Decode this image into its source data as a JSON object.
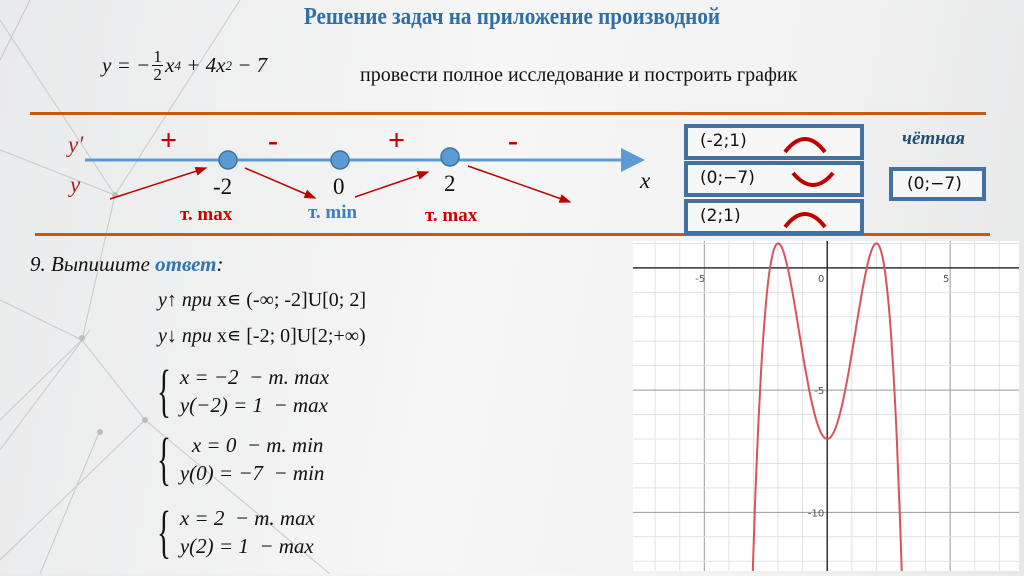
{
  "title": "Решение задач на приложение производной",
  "formula": {
    "lhs": "y = −",
    "num": "1",
    "den": "2",
    "x4": "x",
    "p4": "4",
    "rest": " + 4x",
    "p2": "2",
    "tail": " − 7"
  },
  "task": "провести полное исследование и построить график",
  "number_line": {
    "dy_label": "y′",
    "y_label": "y",
    "x_label": "x",
    "signs": [
      "+",
      "-",
      "+",
      "-"
    ],
    "points": [
      "-2",
      "0",
      "2"
    ],
    "extrema": [
      "т. max",
      "т. min",
      "т. max"
    ],
    "colors": {
      "line": "#5b9bd5",
      "arrows": "#c00000",
      "max": "#d00000",
      "min": "#3f7fc0"
    }
  },
  "points_boxes": [
    {
      "text": "(-2;1)",
      "shape": "convex-arc"
    },
    {
      "text": "(0;−7)",
      "shape": "concave-arc"
    },
    {
      "text": "(2;1)",
      "shape": "convex-arc"
    }
  ],
  "parity": {
    "label": "чётная",
    "point": "(0;−7)"
  },
  "answer": {
    "heading": "9. Выпишите ",
    "heading_bold": "ответ",
    "heading_tail": ":",
    "increase": {
      "y": "y↑ ",
      "when": "при ",
      "set": "x∊ (-∞; -2]U[0; 2]"
    },
    "decrease": {
      "y": "y↓ ",
      "when": "при ",
      "set": "x∊ [-2; 0]U[2;+∞)"
    },
    "systems": [
      [
        "x = −2  − m. max",
        "y(−2) = 1  − max"
      ],
      [
        "x = 0  − m. min",
        "y(0) = −7  − min"
      ],
      [
        "x = 2  − m. max",
        "y(2) = 1  − max"
      ]
    ]
  },
  "chart_data": {
    "type": "line",
    "function": "y = -1/2 x^4 + 4x^2 - 7",
    "coefficients": {
      "x4": -0.5,
      "x2": 4,
      "c": -7
    },
    "xlim": [
      -7.9,
      7.8
    ],
    "ylim": [
      -12.4,
      1.1
    ],
    "x_ticks": [
      "-5",
      "0",
      "5"
    ],
    "y_ticks": [
      "-5",
      "-10"
    ],
    "x_tick_values": [
      -5,
      0,
      5
    ],
    "y_tick_values": [
      -5,
      -10
    ],
    "grid": true,
    "minor_grid_step": 1,
    "series_color": "#d9535a",
    "key_points": [
      {
        "x": -2,
        "y": 1
      },
      {
        "x": 0,
        "y": -7
      },
      {
        "x": 2,
        "y": 1
      }
    ]
  }
}
